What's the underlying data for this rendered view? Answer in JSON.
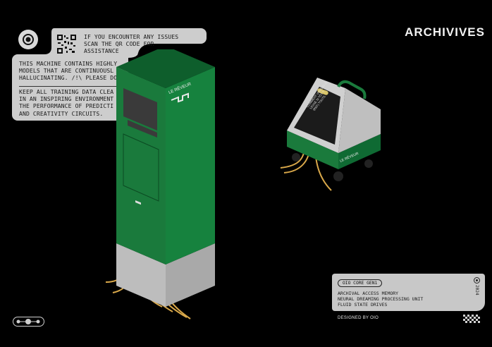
{
  "header": {
    "title": "ARCHIVIVES"
  },
  "notice": {
    "qr_text": "IF YOU ENCOUNTER ANY ISSUES\nSCAN THE QR CODE FOR\nASSISTANCE",
    "body_a": "THIS MACHINE CONTAINS HIGHLY\nMODELS THAT ARE CONTINUOUSL\nHALLUCINATING. /!\\ PLEASE DO",
    "body_b": "KEEP ALL TRAINING DATA CLEA\nIN AN INSPIRING ENVIRONMENT\nTHE PERFORMANCE OF PREDICTI\nAND CREATIVITY CIRCUITS."
  },
  "machine": {
    "brand": "LE RÊVEUR"
  },
  "cart": {
    "brand": "LE RÊVEUR",
    "screen_text": "COMMENT VOUS AI-JE\nLESSÉ SI TÔT ?\n(REF) TOUTE",
    "colors": {
      "green": "#1a7a3c",
      "dark_green": "#0f5a2a",
      "panel": "#d0d0d0",
      "cable": "#d9a84a"
    }
  },
  "info": {
    "badge": "OIO CORE GEN1",
    "lines": "ARCHIVAL ACCESS MEMORY\nNEURAL DREAMING PROCESSING UNIT\nFLUID STATE DRIVES",
    "year": "2024"
  },
  "footer": {
    "credit": "DESIGNED BY OIO"
  },
  "icons": [
    "target-icon",
    "qr-code-icon",
    "nav-dots-icon",
    "pattern-icon",
    "record-icon"
  ]
}
